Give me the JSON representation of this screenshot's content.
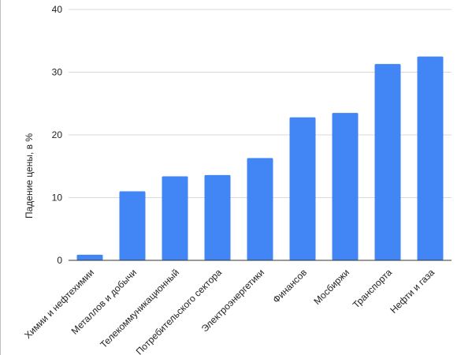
{
  "chart_data": {
    "type": "bar",
    "title": "",
    "xlabel": "",
    "ylabel": "Падение цены, в %",
    "ylim": [
      0,
      40
    ],
    "yticks": [
      0,
      10,
      20,
      30,
      40
    ],
    "grid": true,
    "legend": "none",
    "categories": [
      "Химии и нефтехимии",
      "Металлов и добычи",
      "Телекоммуникационный",
      "Потребительского сектора",
      "Электроэнергетики",
      "Финансов",
      "Мосбиржи",
      "Транспорта",
      "Нефти и газа"
    ],
    "values": [
      0.9,
      11.0,
      13.4,
      13.6,
      16.3,
      22.8,
      23.5,
      31.3,
      32.5
    ],
    "colors": {
      "bar": "#4285f4",
      "grid": "#d9d9d9",
      "axis": "#333333"
    }
  }
}
